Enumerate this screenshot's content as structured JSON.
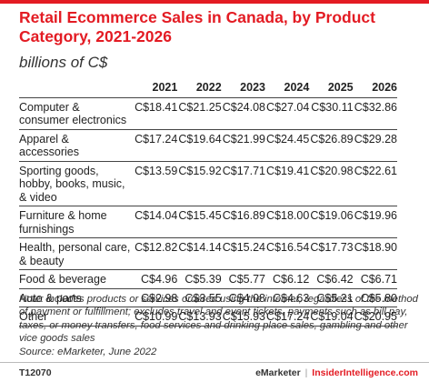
{
  "title": "Retail Ecommerce Sales in Canada, by Product Category, 2021-2026",
  "subtitle": "billions of C$",
  "chart_data": {
    "type": "table",
    "columns": [
      "2021",
      "2022",
      "2023",
      "2024",
      "2025",
      "2026"
    ],
    "rows": [
      {
        "category": "Computer & consumer electronics",
        "cells": [
          "C$18.41",
          "C$21.25",
          "C$24.08",
          "C$27.04",
          "C$30.11",
          "C$32.86"
        ]
      },
      {
        "category": "Apparel & accessories",
        "cells": [
          "C$17.24",
          "C$19.64",
          "C$21.99",
          "C$24.45",
          "C$26.89",
          "C$29.28"
        ]
      },
      {
        "category": "Sporting goods, hobby, books, music, & video",
        "cells": [
          "C$13.59",
          "C$15.92",
          "C$17.71",
          "C$19.41",
          "C$20.98",
          "C$22.61"
        ]
      },
      {
        "category": "Furniture & home furnishings",
        "cells": [
          "C$14.04",
          "C$15.45",
          "C$16.89",
          "C$18.00",
          "C$19.06",
          "C$19.96"
        ]
      },
      {
        "category": "Health, personal care, & beauty",
        "cells": [
          "C$12.82",
          "C$14.14",
          "C$15.24",
          "C$16.54",
          "C$17.73",
          "C$18.90"
        ]
      },
      {
        "category": "Food & beverage",
        "cells": [
          "C$4.96",
          "C$5.39",
          "C$5.77",
          "C$6.12",
          "C$6.42",
          "C$6.71"
        ]
      },
      {
        "category": "Auto & parts",
        "cells": [
          "C$2.98",
          "C$3.55",
          "C$4.08",
          "C$4.63",
          "C$5.21",
          "C$5.80"
        ]
      },
      {
        "category": "Other",
        "cells": [
          "C$10.99",
          "C$13.93",
          "C$15.93",
          "C$17.24",
          "C$19.04",
          "C$20.95"
        ]
      }
    ]
  },
  "note": "Note: includes products or services ordered using the internet, regardless of the method of payment or fulfillment; excludes travel and event tickets, payments such as bill pay, taxes, or money transfers, food services and drinking place sales, gambling and other vice goods sales",
  "source": "Source: eMarketer, June 2022",
  "footer": {
    "code": "T12070",
    "brand_primary": "eMarketer",
    "separator": "|",
    "brand_secondary": "InsiderIntelligence.com"
  },
  "colors": {
    "accent": "#e31b23",
    "text": "#222222",
    "rule": "#444444"
  }
}
